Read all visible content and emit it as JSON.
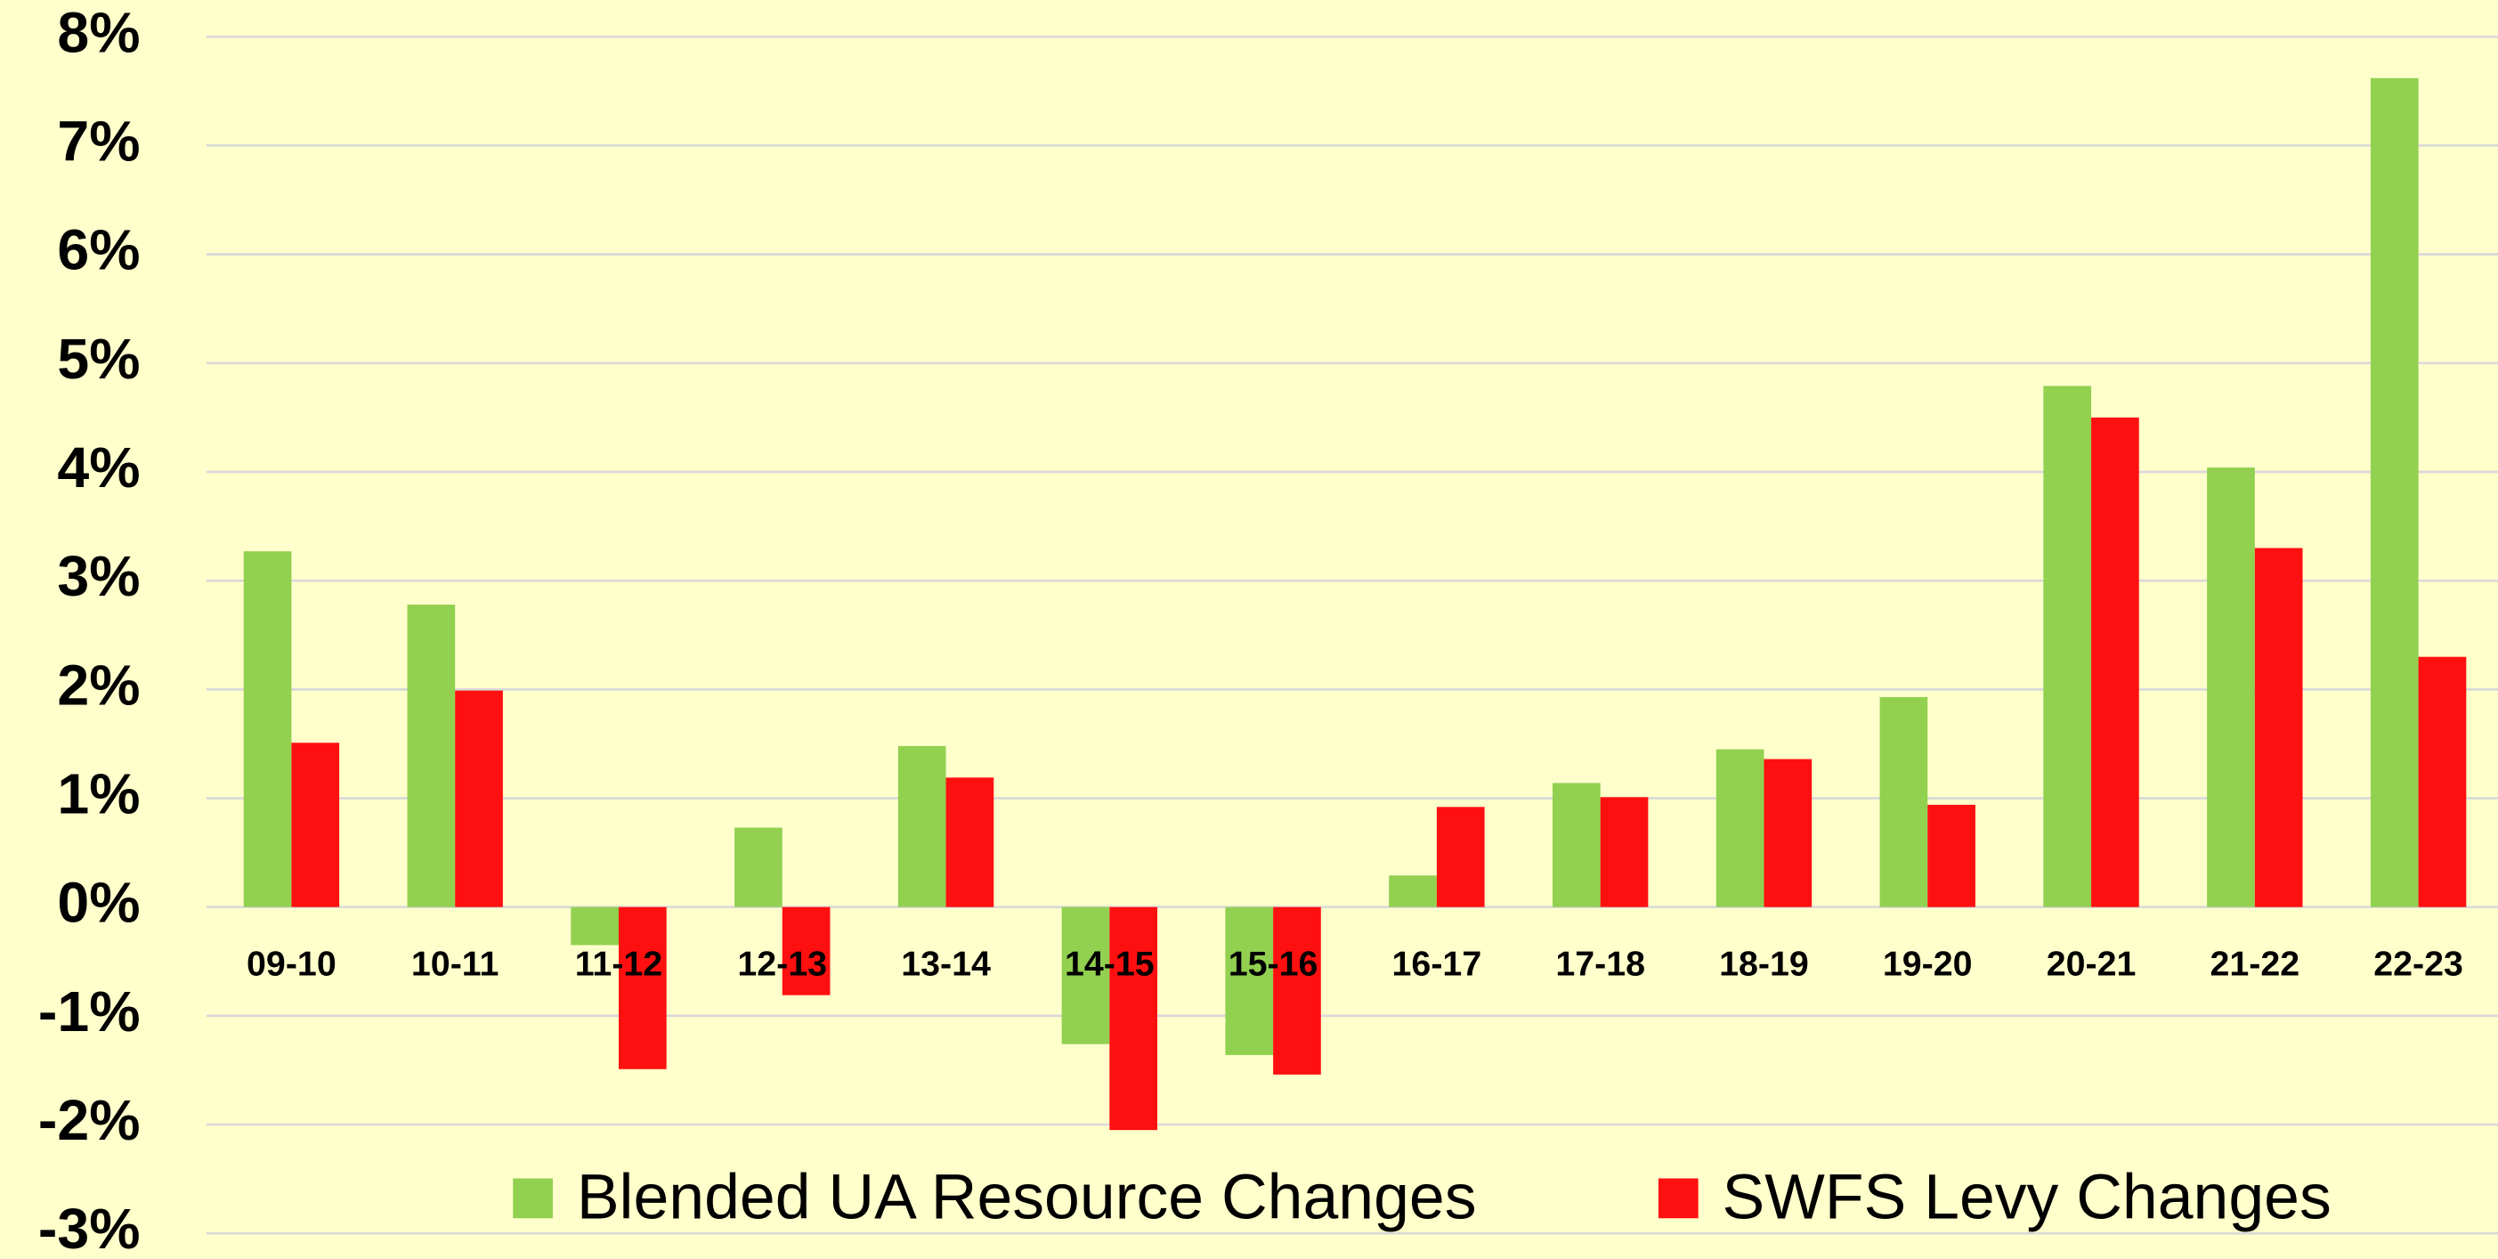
{
  "chart_data": {
    "type": "bar",
    "categories": [
      "09-10",
      "10-11",
      "11-12",
      "12-13",
      "13-14",
      "14-15",
      "15-16",
      "16-17",
      "17-18",
      "18-19",
      "19-20",
      "20-21",
      "21-22",
      "22-23"
    ],
    "series": [
      {
        "name": "Blended UA Resource Changes",
        "color": "#92d050",
        "values": [
          3.27,
          2.78,
          -0.35,
          0.73,
          1.48,
          -1.26,
          -1.36,
          0.29,
          1.14,
          1.45,
          1.93,
          4.79,
          4.04,
          7.62
        ]
      },
      {
        "name": "SWFS Levy Changes",
        "color": "#ff1010",
        "values": [
          1.51,
          1.99,
          -1.49,
          -0.81,
          1.19,
          -2.05,
          -1.54,
          0.92,
          1.01,
          1.36,
          0.94,
          4.5,
          3.3,
          2.3
        ]
      }
    ],
    "ylim": [
      -3,
      8
    ],
    "yticks": [
      {
        "value": -3,
        "label": "-3%"
      },
      {
        "value": -2,
        "label": "-2%"
      },
      {
        "value": -1,
        "label": "-1%"
      },
      {
        "value": 0,
        "label": "0%"
      },
      {
        "value": 1,
        "label": "1%"
      },
      {
        "value": 2,
        "label": "2%"
      },
      {
        "value": 3,
        "label": "3%"
      },
      {
        "value": 4,
        "label": "4%"
      },
      {
        "value": 5,
        "label": "5%"
      },
      {
        "value": 6,
        "label": "6%"
      },
      {
        "value": 7,
        "label": "7%"
      },
      {
        "value": 8,
        "label": "8%"
      }
    ],
    "grid": true,
    "legend": "bottom"
  }
}
